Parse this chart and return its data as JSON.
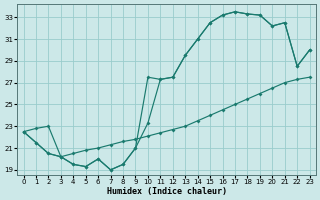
{
  "xlabel": "Humidex (Indice chaleur)",
  "bg_color": "#cce8e8",
  "grid_color": "#99cccc",
  "line_color": "#1a7a6e",
  "xlim_min": -0.5,
  "xlim_max": 23.5,
  "ylim_min": 18.5,
  "ylim_max": 34.2,
  "xticks": [
    0,
    1,
    2,
    3,
    4,
    5,
    6,
    7,
    8,
    9,
    10,
    11,
    12,
    13,
    14,
    15,
    16,
    17,
    18,
    19,
    20,
    21,
    22,
    23
  ],
  "yticks": [
    19,
    21,
    23,
    25,
    27,
    29,
    31,
    33
  ],
  "c1x": [
    0,
    1,
    2,
    3,
    4,
    5,
    6,
    7,
    8,
    9,
    10,
    11,
    12,
    13,
    14,
    15,
    16,
    17,
    18,
    19,
    20,
    21,
    22,
    23
  ],
  "c1y": [
    22.5,
    21.5,
    20.5,
    20.2,
    19.5,
    19.3,
    20.0,
    19.0,
    19.5,
    21.0,
    27.5,
    27.3,
    27.5,
    29.5,
    31.0,
    32.5,
    33.2,
    33.5,
    33.3,
    33.2,
    32.2,
    32.5,
    28.5,
    30.0
  ],
  "c2x": [
    0,
    1,
    2,
    3,
    4,
    5,
    6,
    7,
    8,
    9,
    10,
    11,
    12,
    13,
    14,
    15,
    16,
    17,
    18,
    19,
    20,
    21,
    22,
    23
  ],
  "c2y": [
    22.5,
    21.5,
    20.5,
    20.2,
    19.5,
    19.3,
    20.0,
    19.0,
    19.5,
    21.0,
    23.3,
    27.3,
    27.5,
    29.5,
    31.0,
    32.5,
    33.2,
    33.5,
    33.3,
    33.2,
    32.2,
    32.5,
    28.5,
    30.0
  ],
  "c3x": [
    0,
    1,
    2,
    3,
    4,
    5,
    6,
    7,
    8,
    9,
    10,
    11,
    12,
    13,
    14,
    15,
    16,
    17,
    18,
    19,
    20,
    21,
    22,
    23
  ],
  "c3y": [
    22.5,
    22.8,
    23.0,
    20.2,
    20.5,
    20.8,
    21.0,
    21.3,
    21.6,
    21.8,
    22.1,
    22.4,
    22.7,
    23.0,
    23.5,
    24.0,
    24.5,
    25.0,
    25.5,
    26.0,
    26.5,
    27.0,
    27.3,
    27.5
  ]
}
